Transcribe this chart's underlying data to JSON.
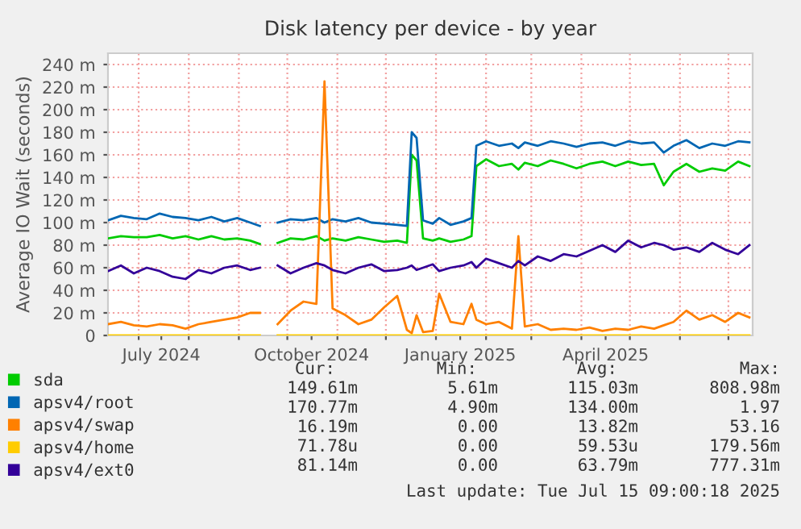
{
  "chart_data": {
    "type": "line",
    "title": "Disk latency per device - by year",
    "ylabel": "Average IO Wait (seconds)",
    "x": [
      "2024-06-12",
      "2024-06-20",
      "2024-06-28",
      "2024-07-06",
      "2024-07-14",
      "2024-07-22",
      "2024-07-30",
      "2024-08-07",
      "2024-08-15",
      "2024-08-23",
      "2024-08-31",
      "2024-09-08",
      "2024-09-14",
      "2024-09-19",
      "2024-09-25",
      "2024-10-03",
      "2024-10-11",
      "2024-10-19",
      "2024-10-24",
      "2024-10-29",
      "2024-11-06",
      "2024-11-14",
      "2024-11-22",
      "2024-11-30",
      "2024-12-08",
      "2024-12-14",
      "2024-12-17",
      "2024-12-20",
      "2024-12-24",
      "2024-12-30",
      "2025-01-03",
      "2025-01-10",
      "2025-01-18",
      "2025-01-23",
      "2025-01-26",
      "2025-02-01",
      "2025-02-09",
      "2025-02-17",
      "2025-02-21",
      "2025-02-25",
      "2025-03-05",
      "2025-03-13",
      "2025-03-21",
      "2025-03-29",
      "2025-04-06",
      "2025-04-14",
      "2025-04-22",
      "2025-04-30",
      "2025-05-08",
      "2025-05-16",
      "2025-05-22",
      "2025-05-28",
      "2025-06-05",
      "2025-06-13",
      "2025-06-21",
      "2025-06-29",
      "2025-07-07",
      "2025-07-14"
    ],
    "series": [
      {
        "name": "sda",
        "color": "#00cc00",
        "values": [
          86,
          88,
          87,
          87,
          89,
          86,
          88,
          85,
          88,
          85,
          86,
          84,
          81,
          null,
          82,
          86,
          85,
          88,
          84,
          86,
          84,
          87,
          85,
          83,
          84,
          82,
          160,
          155,
          86,
          84,
          86,
          83,
          85,
          88,
          150,
          156,
          150,
          152,
          147,
          153,
          150,
          155,
          152,
          148,
          152,
          154,
          150,
          154,
          151,
          152,
          133,
          145,
          152,
          145,
          148,
          146,
          154,
          150
        ]
      },
      {
        "name": "apsv4/root",
        "color": "#0066b3",
        "values": [
          102,
          106,
          104,
          103,
          108,
          105,
          104,
          102,
          105,
          101,
          104,
          100,
          97,
          null,
          100,
          103,
          102,
          104,
          100,
          103,
          101,
          104,
          100,
          99,
          98,
          97,
          180,
          175,
          102,
          99,
          104,
          98,
          101,
          104,
          168,
          172,
          168,
          170,
          166,
          171,
          168,
          172,
          170,
          167,
          170,
          171,
          168,
          172,
          170,
          171,
          162,
          168,
          173,
          166,
          170,
          168,
          172,
          171
        ]
      },
      {
        "name": "apsv4/swap",
        "color": "#ff8000",
        "values": [
          10,
          12,
          9,
          8,
          10,
          9,
          6,
          10,
          12,
          14,
          16,
          20,
          20,
          null,
          10,
          22,
          30,
          28,
          225,
          24,
          18,
          10,
          14,
          25,
          35,
          5,
          2,
          18,
          3,
          4,
          37,
          12,
          10,
          28,
          14,
          10,
          12,
          6,
          88,
          8,
          10,
          5,
          6,
          5,
          7,
          4,
          6,
          5,
          8,
          6,
          9,
          12,
          22,
          14,
          18,
          12,
          20,
          16
        ]
      },
      {
        "name": "apsv4/home",
        "color": "#ffcc00",
        "values": [
          0,
          0,
          0,
          0,
          0,
          0,
          0,
          0,
          0,
          0,
          0,
          0,
          0,
          null,
          0,
          0,
          0,
          0,
          0,
          0,
          0,
          0,
          0,
          0,
          0,
          0,
          0,
          0,
          0,
          0,
          0,
          0,
          0,
          0,
          0,
          0,
          0,
          0,
          0,
          0,
          0,
          0,
          0,
          0,
          0,
          0,
          0,
          0,
          0,
          0,
          0,
          0,
          0,
          0,
          0,
          0,
          0,
          0
        ]
      },
      {
        "name": "apsv4/ext0",
        "color": "#330099",
        "values": [
          57,
          62,
          55,
          60,
          57,
          52,
          50,
          58,
          55,
          60,
          62,
          58,
          60,
          null,
          62,
          55,
          60,
          64,
          62,
          58,
          55,
          60,
          63,
          57,
          58,
          60,
          62,
          58,
          60,
          63,
          57,
          60,
          62,
          65,
          60,
          68,
          64,
          60,
          66,
          62,
          70,
          66,
          72,
          70,
          75,
          80,
          74,
          84,
          78,
          82,
          80,
          76,
          78,
          74,
          82,
          76,
          72,
          80
        ]
      }
    ],
    "xlim": [
      "2024-06-12",
      "2025-07-16"
    ],
    "xticks": [
      {
        "value": "2024-07-01",
        "label": null
      },
      {
        "value": "2024-07-15",
        "label": "July 2024"
      },
      {
        "value": "2024-08-01",
        "label": null
      },
      {
        "value": "2024-09-01",
        "label": null
      },
      {
        "value": "2024-10-01",
        "label": null
      },
      {
        "value": "2024-10-16",
        "label": "October 2024"
      },
      {
        "value": "2024-11-01",
        "label": null
      },
      {
        "value": "2024-12-01",
        "label": null
      },
      {
        "value": "2025-01-01",
        "label": null
      },
      {
        "value": "2025-01-16",
        "label": "January 2025"
      },
      {
        "value": "2025-02-01",
        "label": null
      },
      {
        "value": "2025-03-01",
        "label": null
      },
      {
        "value": "2025-04-01",
        "label": null
      },
      {
        "value": "2025-04-16",
        "label": "April 2025"
      },
      {
        "value": "2025-05-01",
        "label": null
      },
      {
        "value": "2025-06-01",
        "label": null
      },
      {
        "value": "2025-07-01",
        "label": null
      }
    ],
    "ylim": [
      0,
      250
    ],
    "yticks": [
      0,
      {
        "value": 20,
        "label": "20 m"
      },
      {
        "value": 40,
        "label": "40 m"
      },
      {
        "value": 60,
        "label": "60 m"
      },
      {
        "value": 80,
        "label": "80 m"
      },
      {
        "value": 100,
        "label": "100 m"
      },
      {
        "value": 120,
        "label": "120 m"
      },
      {
        "value": 140,
        "label": "140 m"
      },
      {
        "value": 160,
        "label": "160 m"
      },
      {
        "value": 180,
        "label": "180 m"
      },
      {
        "value": 200,
        "label": "200 m"
      },
      {
        "value": 220,
        "label": "220 m"
      },
      {
        "value": 240,
        "label": "240 m"
      }
    ],
    "grid": true,
    "legend": "bottom",
    "marker": "none",
    "line_style": "solid",
    "annotations": [
      "Cur:",
      "Min:",
      "Avg:",
      "Max:",
      "149.61m",
      "5.61m",
      "115.03m",
      "808.98m",
      "170.77m",
      "4.90m",
      "134.00m",
      "1.97",
      "16.19m",
      "0.00",
      "13.82m",
      "53.16",
      "71.78u",
      "0.00",
      "59.53u",
      "179.56m",
      "81.14m",
      "0.00",
      "63.79m",
      "777.31m",
      "Last update: Tue Jul 15 09:00:18 2025"
    ]
  }
}
